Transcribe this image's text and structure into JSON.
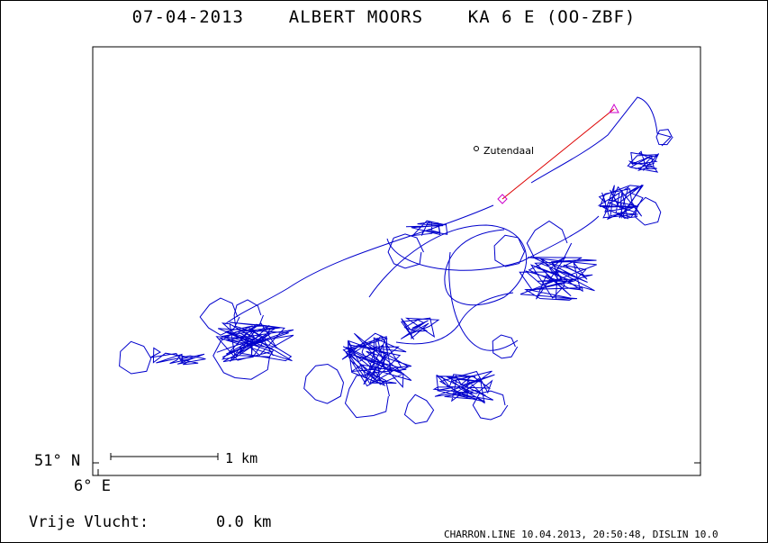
{
  "header": {
    "title": "07-04-2013    ALBERT MOORS    KA 6 E (OO-ZBF)"
  },
  "axes": {
    "latitude_label": "51° N",
    "longitude_label": "6° E"
  },
  "scale_bar": {
    "label": "1 km"
  },
  "places": [
    {
      "name": "Zutendaal"
    }
  ],
  "flight": {
    "free_flight_label": "Vrije Vlucht:",
    "free_flight_value": "0.0 km",
    "track_color": "#0000cc",
    "task_line_color": "#dd0000",
    "marker_color": "#cc00cc"
  },
  "footer": {
    "text": "CHARRON.LINE 10.04.2013, 20:50:48, DISLIN 10.0"
  }
}
